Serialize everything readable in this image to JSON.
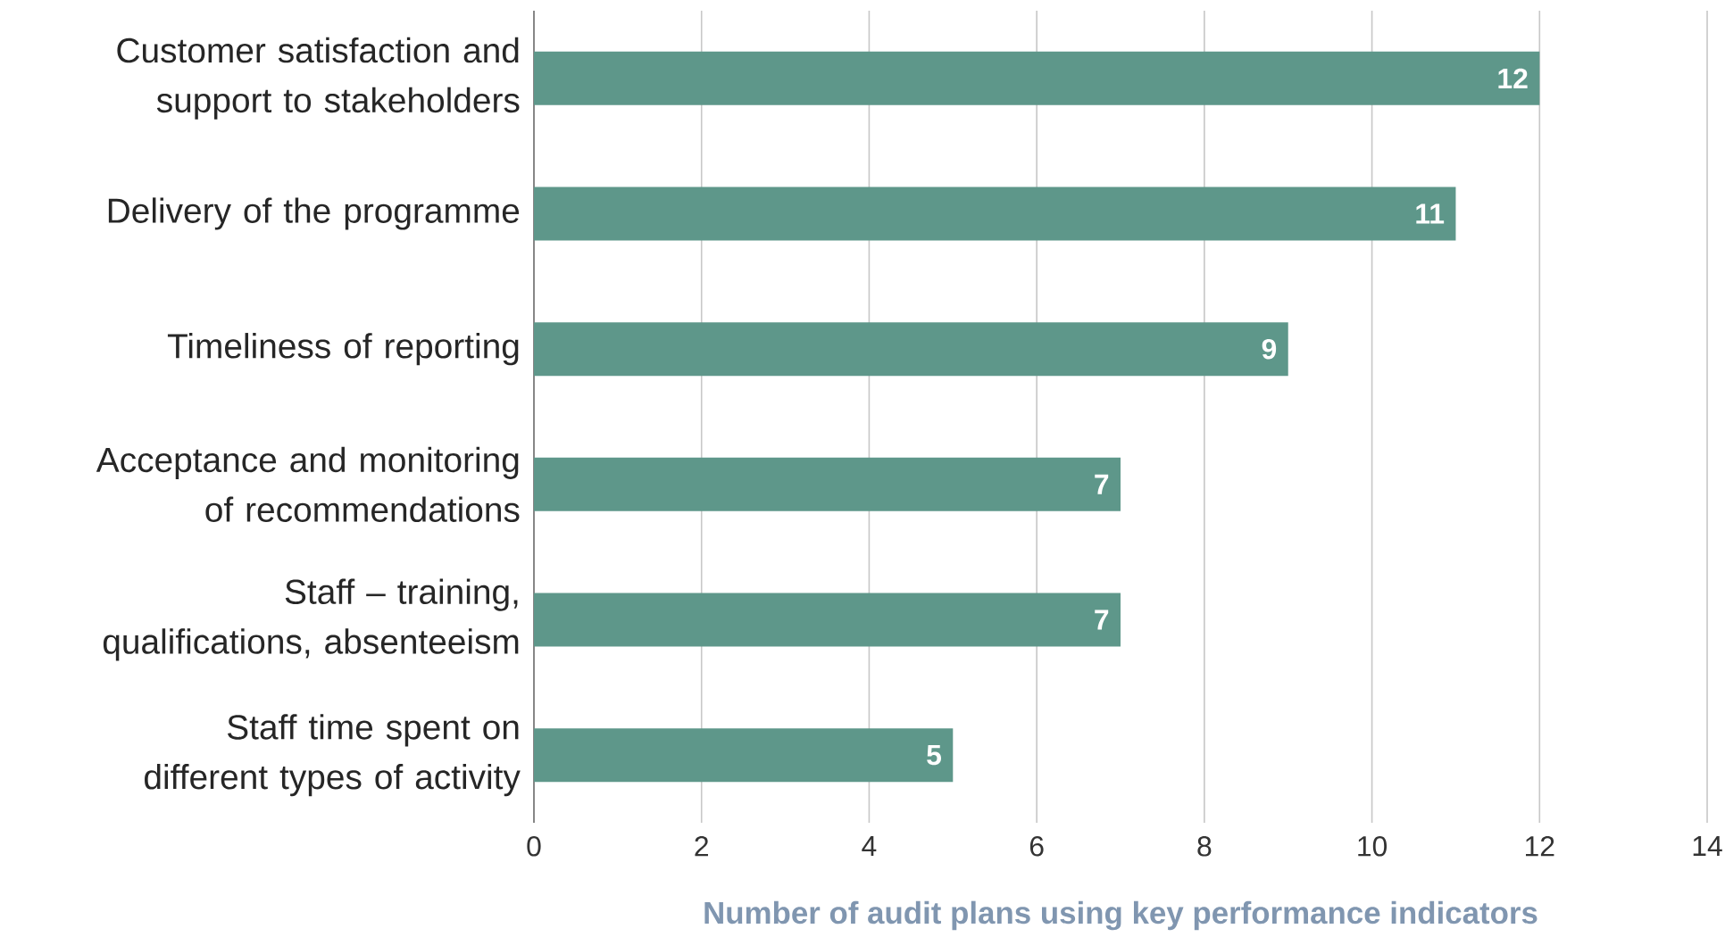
{
  "chart_data": {
    "type": "bar",
    "orientation": "horizontal",
    "xlabel": "Number of audit plans using key performance indicators",
    "categories": [
      "Customer satisfaction and support to stakeholders",
      "Delivery of the programme",
      "Timeliness of reporting",
      "Acceptance and monitoring of recommendations",
      "Staff – training, qualifications, absenteeism",
      "Staff time spent on different types of activity"
    ],
    "values": [
      12,
      11,
      9,
      7,
      7,
      5
    ],
    "color": "#5e978a",
    "xlim": [
      0,
      14
    ],
    "xticks": [
      0,
      2,
      4,
      6,
      8,
      10,
      12,
      14
    ],
    "grid": "x",
    "data_labels": true
  }
}
